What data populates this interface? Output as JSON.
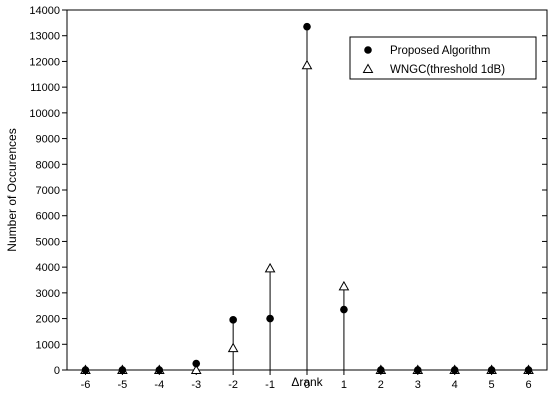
{
  "chart_data": {
    "type": "scatter",
    "style": "stem",
    "xlabel": "Δrank",
    "ylabel": "Number of Occurences",
    "xlim": [
      -6.5,
      6.5
    ],
    "ylim": [
      0,
      14000
    ],
    "x_ticks": [
      -6,
      -5,
      -4,
      -3,
      -2,
      -1,
      0,
      1,
      2,
      3,
      4,
      5,
      6
    ],
    "x_tick_labels": [
      "-6",
      "-5",
      "-4",
      "-3",
      "-2",
      "-1",
      "0",
      "1",
      "2",
      "3",
      "4",
      "5",
      "6"
    ],
    "y_ticks": [
      0,
      1000,
      2000,
      3000,
      4000,
      5000,
      6000,
      7000,
      8000,
      9000,
      10000,
      11000,
      12000,
      13000,
      14000
    ],
    "y_tick_labels": [
      "0",
      "1000",
      "2000",
      "3000",
      "4000",
      "5000",
      "6000",
      "7000",
      "8000",
      "9000",
      "10000",
      "11000",
      "12000",
      "13000",
      "14000"
    ],
    "grid": false,
    "legend_position": "top-right",
    "series": [
      {
        "name": "Proposed Algorithm",
        "marker": "filled-circle",
        "x": [
          -6,
          -5,
          -4,
          -3,
          -2,
          -1,
          0,
          1,
          2,
          3,
          4,
          5,
          6
        ],
        "values": [
          0,
          0,
          0,
          250,
          1950,
          2000,
          13350,
          2350,
          0,
          0,
          0,
          0,
          0
        ]
      },
      {
        "name": "WNGC(threshold 1dB)",
        "marker": "open-triangle",
        "x": [
          -6,
          -5,
          -4,
          -3,
          -2,
          -1,
          0,
          1,
          2,
          3,
          4,
          5,
          6
        ],
        "values": [
          0,
          0,
          0,
          0,
          850,
          3950,
          11850,
          3250,
          0,
          0,
          0,
          0,
          0
        ]
      }
    ],
    "colors": {
      "axis": "#000000",
      "marker": "#000000",
      "background": "#ffffff"
    }
  }
}
